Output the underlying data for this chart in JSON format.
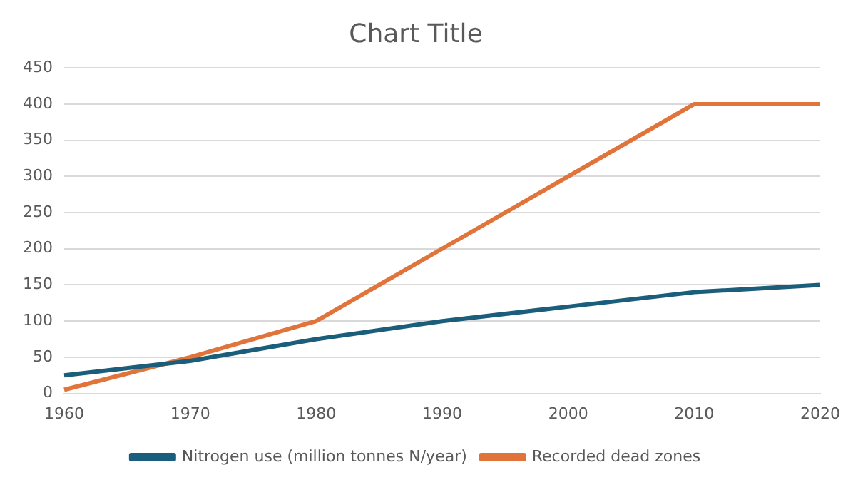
{
  "chart_data": {
    "type": "line",
    "title": "Chart Title",
    "categories": [
      "1960",
      "1970",
      "1980",
      "1990",
      "2000",
      "2010",
      "2020"
    ],
    "series": [
      {
        "name": "Nitrogen use (million tonnes N/year)",
        "color": "#1b5e7b",
        "values": [
          25,
          45,
          75,
          100,
          120,
          140,
          150
        ]
      },
      {
        "name": "Recorded dead zones",
        "color": "#e0743a",
        "values": [
          5,
          50,
          100,
          200,
          300,
          400,
          400
        ]
      }
    ],
    "ylim": [
      0,
      450
    ],
    "yticks": [
      0,
      50,
      100,
      150,
      200,
      250,
      300,
      350,
      400,
      450
    ],
    "grid": "y",
    "legend": "bottom",
    "marker": "none",
    "line_style": "solid"
  }
}
